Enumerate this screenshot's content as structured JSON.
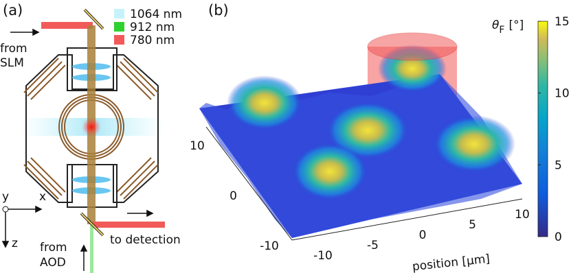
{
  "panel_a": {
    "label": "(a)",
    "legend": [
      {
        "label": "1064 nm",
        "color": "#c6f3fb"
      },
      {
        "label": "912 nm",
        "color": "#2fd12f"
      },
      {
        "label": "780 nm",
        "color": "#f25a5a"
      }
    ],
    "from_slm": [
      "from",
      "SLM"
    ],
    "from_aod": [
      "from",
      "AOD"
    ],
    "to_detection": "to detection",
    "axes": {
      "x": "x",
      "y": "y",
      "z": "z"
    }
  },
  "panel_b": {
    "label": "(b)",
    "colorbar": {
      "symbol": "θ",
      "subscript": "F",
      "unit": "[°]",
      "ticks": [
        0,
        5,
        10,
        15
      ]
    },
    "x_axis": {
      "label": "position [μm]",
      "ticks": [
        -10,
        -5,
        0,
        5,
        10
      ]
    },
    "y_axis": {
      "ticks": [
        -10,
        0,
        10
      ]
    }
  }
}
